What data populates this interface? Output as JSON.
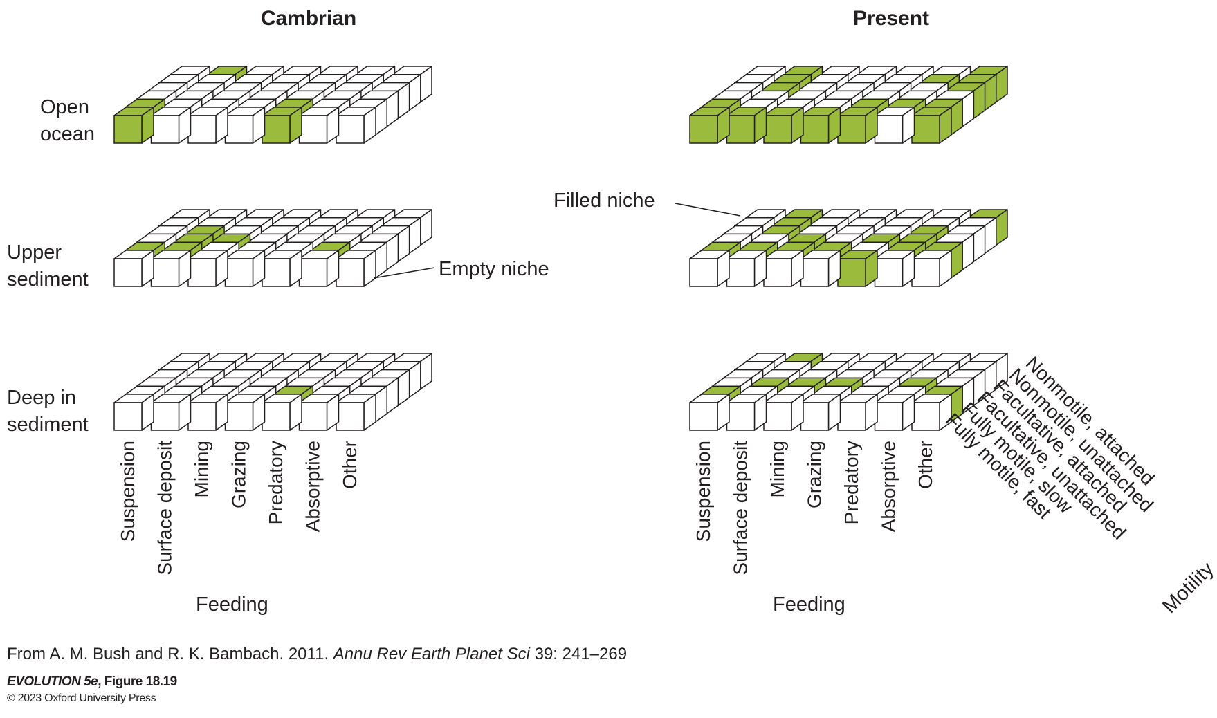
{
  "titles": {
    "left": "Cambrian",
    "right": "Present"
  },
  "tiers": [
    {
      "label_line1": "Open",
      "label_line2": "ocean"
    },
    {
      "label_line1": "Upper",
      "label_line2": "sediment"
    },
    {
      "label_line1": "Deep in",
      "label_line2": "sediment"
    }
  ],
  "feeding": [
    "Suspension",
    "Surface deposit",
    "Mining",
    "Grazing",
    "Predatory",
    "Absorptive",
    "Other"
  ],
  "feeding_title": "Feeding",
  "motility": [
    "Nonmotile, attached",
    "Nonmotile, unattached",
    "Facultative, attached",
    "Facultative, unattached",
    "Fully motile, slow",
    "Fully motile, fast"
  ],
  "motility_title": "Motility",
  "callouts": {
    "empty": "Empty niche",
    "filled": "Filled niche"
  },
  "colors": {
    "filled": "#9bbb3c",
    "empty": "#ffffff",
    "stroke": "#231f20"
  },
  "filled_niches_note": "feeding column index 0-6, motility row index 0 = Nonmotile, attached (back) ... 5 = Fully motile, fast (front)",
  "filled_niches": {
    "cambrian": {
      "open_ocean": [
        [
          0,
          5
        ],
        [
          0,
          4
        ],
        [
          1,
          0
        ],
        [
          4,
          4
        ],
        [
          4,
          5
        ]
      ],
      "upper_sediment": [
        [
          0,
          4
        ],
        [
          1,
          2
        ],
        [
          1,
          3
        ],
        [
          1,
          4
        ],
        [
          2,
          3
        ],
        [
          5,
          4
        ]
      ],
      "deep_sediment": [
        [
          4,
          4
        ]
      ]
    },
    "present": {
      "open_ocean": [
        [
          0,
          5
        ],
        [
          1,
          5
        ],
        [
          2,
          5
        ],
        [
          3,
          5
        ],
        [
          4,
          5
        ],
        [
          6,
          5
        ],
        [
          0,
          4
        ],
        [
          1,
          0
        ],
        [
          1,
          1
        ],
        [
          1,
          2
        ],
        [
          4,
          4
        ],
        [
          5,
          4
        ],
        [
          6,
          4
        ],
        [
          5,
          1
        ],
        [
          6,
          2
        ],
        [
          6,
          1
        ],
        [
          6,
          0
        ]
      ],
      "upper_sediment": [
        [
          4,
          5
        ],
        [
          0,
          4
        ],
        [
          1,
          4
        ],
        [
          1,
          2
        ],
        [
          1,
          1
        ],
        [
          1,
          0
        ],
        [
          2,
          4
        ],
        [
          2,
          3
        ],
        [
          3,
          4
        ],
        [
          4,
          3
        ],
        [
          5,
          3
        ],
        [
          5,
          4
        ],
        [
          5,
          2
        ],
        [
          6,
          4
        ],
        [
          6,
          0
        ]
      ],
      "deep_sediment": [
        [
          1,
          0
        ],
        [
          1,
          3
        ],
        [
          2,
          3
        ],
        [
          3,
          3
        ],
        [
          5,
          3
        ],
        [
          6,
          4
        ],
        [
          0,
          4
        ]
      ]
    }
  },
  "source": {
    "prefix": "From A. M. Bush and R. K. Bambach. 2011. ",
    "journal": "Annu Rev Earth Planet Sci",
    "suffix": " 39: 241–269"
  },
  "figure_id": {
    "book": "EVOLUTION 5e",
    "rest": ", Figure 18.19"
  },
  "copyright": "© 2023 Oxford University Press"
}
